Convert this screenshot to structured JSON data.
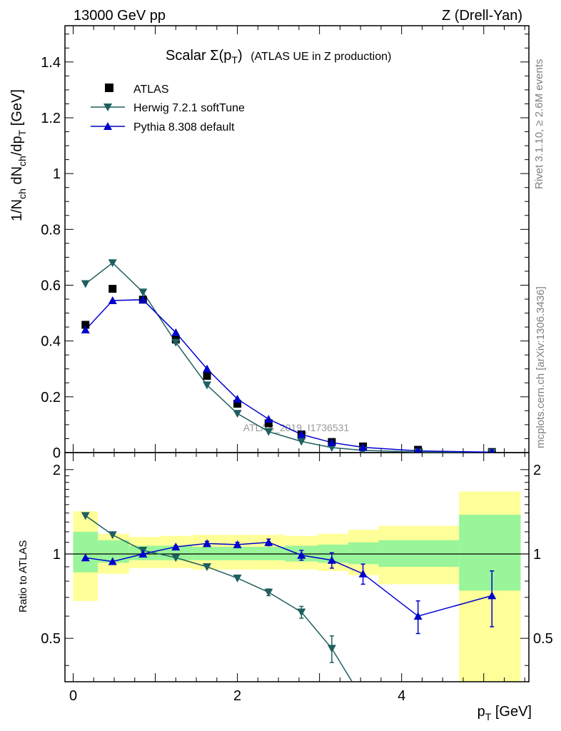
{
  "header": {
    "left": "13000 GeV pp",
    "right": "Z (Drell-Yan)"
  },
  "side_labels": {
    "rivet": "Rivet 3.1.10, ≥ 2.6M events",
    "mcplots": "mcplots.cern.ch [arXiv:1306.3436]"
  },
  "watermark": "ATLAS_2019_I1736531",
  "colors": {
    "atlas": "#000000",
    "herwig": "#1f5f5f",
    "pythia": "#0000cc",
    "band_inner": "#99f599",
    "band_outer": "#ffff99"
  },
  "chart_data": [
    {
      "type": "line",
      "title_main": "Scalar Σ(p",
      "title_sub": "T",
      "title_close": ")",
      "title_rest": "(ATLAS UE in Z production)",
      "ylabel_parts": [
        "1/N",
        "ch",
        " dN",
        "ch",
        "/dp",
        "T",
        " [GeV]"
      ],
      "xlabel_main": "p",
      "xlabel_sub": "T",
      "xlabel_rest": " [GeV]",
      "xlim": [
        -0.1,
        5.55
      ],
      "ylim": [
        0,
        1.53
      ],
      "yticks": [
        0,
        0.2,
        0.4,
        0.6,
        0.8,
        1,
        1.2,
        1.4
      ],
      "ytick_labels": [
        "0",
        "0.2",
        "0.4",
        "0.6",
        "0.8",
        "1",
        "1.2",
        "1.4"
      ],
      "legend_position": "top-left",
      "series": [
        {
          "name": "ATLAS",
          "marker": "square",
          "x": [
            0.15,
            0.48,
            0.85,
            1.25,
            1.63,
            2.0,
            2.38,
            2.78,
            3.15,
            3.53,
            4.2,
            5.1
          ],
          "y": [
            0.458,
            0.587,
            0.548,
            0.405,
            0.275,
            0.175,
            0.105,
            0.065,
            0.038,
            0.022,
            0.01,
            0.002
          ]
        },
        {
          "name": "Herwig 7.2.1 softTune",
          "marker": "triangle-down",
          "x": [
            0.15,
            0.48,
            0.85,
            1.25,
            1.63,
            2.0,
            2.38,
            2.78,
            3.15,
            3.53,
            4.2,
            5.1
          ],
          "y": [
            0.605,
            0.68,
            0.575,
            0.395,
            0.242,
            0.14,
            0.075,
            0.04,
            0.018,
            0.008,
            0.002,
            0.0004
          ]
        },
        {
          "name": "Pythia 8.308 default",
          "marker": "triangle-up",
          "x": [
            0.15,
            0.48,
            0.85,
            1.25,
            1.63,
            2.0,
            2.38,
            2.78,
            3.15,
            3.53,
            4.2,
            5.1
          ],
          "y": [
            0.44,
            0.545,
            0.548,
            0.43,
            0.3,
            0.192,
            0.12,
            0.065,
            0.036,
            0.019,
            0.006,
            0.0015
          ]
        }
      ]
    },
    {
      "type": "line",
      "ylabel": "Ratio to ATLAS",
      "xlim": [
        -0.1,
        5.55
      ],
      "ylim": [
        0.35,
        2.3
      ],
      "yticks": [
        0.5,
        1,
        2
      ],
      "ytick_labels": [
        "0.5",
        "1",
        "2"
      ],
      "xticks": [
        0,
        2,
        4
      ],
      "xtick_labels": [
        "0",
        "2",
        "4"
      ],
      "reference_line": 1,
      "bands": [
        {
          "xlo": 0.0,
          "xhi": 0.3,
          "inner": [
            0.86,
            1.2
          ],
          "outer": [
            0.68,
            1.42
          ]
        },
        {
          "xlo": 0.3,
          "xhi": 0.68,
          "inner": [
            0.93,
            1.12
          ],
          "outer": [
            0.85,
            1.18
          ]
        },
        {
          "xlo": 0.68,
          "xhi": 1.05,
          "inner": [
            0.95,
            1.07
          ],
          "outer": [
            0.89,
            1.15
          ]
        },
        {
          "xlo": 1.05,
          "xhi": 1.45,
          "inner": [
            0.95,
            1.07
          ],
          "outer": [
            0.89,
            1.16
          ]
        },
        {
          "xlo": 1.45,
          "xhi": 1.82,
          "inner": [
            0.95,
            1.06
          ],
          "outer": [
            0.88,
            1.17
          ]
        },
        {
          "xlo": 1.82,
          "xhi": 2.2,
          "inner": [
            0.95,
            1.06
          ],
          "outer": [
            0.88,
            1.17
          ]
        },
        {
          "xlo": 2.2,
          "xhi": 2.58,
          "inner": [
            0.95,
            1.06
          ],
          "outer": [
            0.88,
            1.17
          ]
        },
        {
          "xlo": 2.58,
          "xhi": 2.98,
          "inner": [
            0.94,
            1.07
          ],
          "outer": [
            0.88,
            1.16
          ]
        },
        {
          "xlo": 2.98,
          "xhi": 3.35,
          "inner": [
            0.93,
            1.08
          ],
          "outer": [
            0.87,
            1.18
          ]
        },
        {
          "xlo": 3.35,
          "xhi": 3.72,
          "inner": [
            0.92,
            1.1
          ],
          "outer": [
            0.84,
            1.22
          ]
        },
        {
          "xlo": 3.72,
          "xhi": 4.7,
          "inner": [
            0.9,
            1.12
          ],
          "outer": [
            0.78,
            1.26
          ]
        },
        {
          "xlo": 4.7,
          "xhi": 5.45,
          "inner": [
            0.74,
            1.38
          ],
          "outer": [
            0.35,
            1.67
          ]
        }
      ],
      "series": [
        {
          "name": "Herwig 7.2.1 softTune",
          "marker": "triangle-down",
          "x": [
            0.15,
            0.48,
            0.85,
            1.25,
            1.63,
            2.0,
            2.38,
            2.78,
            3.15,
            3.45
          ],
          "y": [
            1.37,
            1.17,
            1.03,
            0.97,
            0.9,
            0.82,
            0.73,
            0.62,
            0.46,
            0.33
          ],
          "err": [
            0,
            0,
            0,
            0,
            0,
            0,
            0.02,
            0.03,
            0.05,
            0
          ],
          "show_marker": [
            true,
            true,
            true,
            true,
            true,
            true,
            true,
            true,
            true,
            false
          ]
        },
        {
          "name": "Pythia 8.308 default",
          "marker": "triangle-up",
          "x": [
            0.15,
            0.48,
            0.85,
            1.25,
            1.63,
            2.0,
            2.38,
            2.78,
            3.15,
            3.53,
            4.2,
            5.1
          ],
          "y": [
            0.97,
            0.94,
            1.0,
            1.06,
            1.09,
            1.08,
            1.1,
            0.99,
            0.95,
            0.85,
            0.6,
            0.71
          ],
          "err": [
            0,
            0,
            0,
            0.01,
            0.02,
            0.02,
            0.03,
            0.04,
            0.06,
            0.07,
            0.08,
            0.16
          ]
        }
      ]
    }
  ]
}
